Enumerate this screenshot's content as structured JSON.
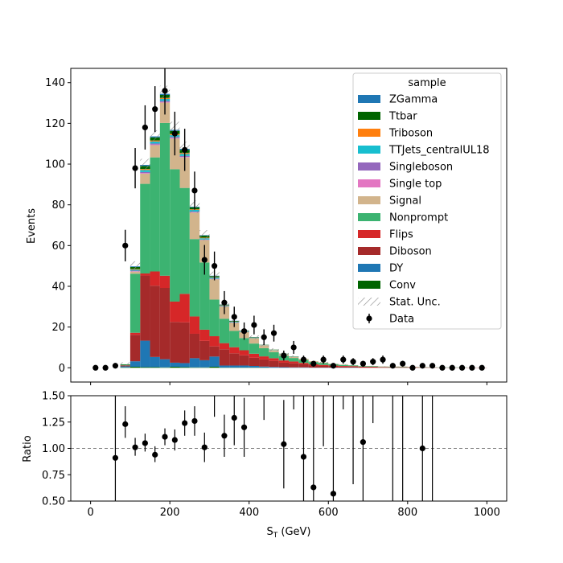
{
  "chart_data": [
    {
      "type": "bar",
      "subtype": "stacked-histogram",
      "xlabel": "S_T (GeV)",
      "ylabel": "Events",
      "xlim": [
        -50,
        1050
      ],
      "ylim": [
        -7,
        147
      ],
      "y_ticks": [
        0,
        20,
        40,
        60,
        80,
        100,
        120,
        140
      ],
      "x_ticks": [
        0,
        200,
        400,
        600,
        800,
        1000
      ],
      "legend": {
        "title": "sample",
        "placement": "top-right",
        "entries": [
          "ZGamma",
          "Ttbar",
          "Triboson",
          "TTJets_centralUL18",
          "Singleboson",
          "Single top",
          "Signal",
          "Nonprompt",
          "Flips",
          "Diboson",
          "DY",
          "Conv",
          "Stat. Unc.",
          "Data"
        ]
      },
      "bin_edges": [
        0,
        25,
        50,
        75,
        100,
        125,
        150,
        175,
        200,
        225,
        250,
        275,
        300,
        325,
        350,
        375,
        400,
        425,
        450,
        475,
        500,
        525,
        550,
        575,
        600,
        625,
        650,
        675,
        700,
        725,
        750,
        775,
        800,
        825,
        850,
        875,
        900,
        925,
        950,
        975,
        1000
      ],
      "series": [
        {
          "name": "Conv",
          "color": "#006400",
          "values": [
            0,
            0,
            0,
            0.2,
            0.5,
            0.3,
            0.3,
            0.2,
            0.5,
            0.3,
            0.2,
            0.2,
            0.5,
            0.1,
            0.1,
            0.1,
            0.1,
            0.1,
            0,
            0,
            0,
            0,
            0,
            0,
            0,
            0,
            0,
            0,
            0,
            0,
            0,
            0,
            0,
            0,
            0,
            0,
            0,
            0,
            0,
            0
          ]
        },
        {
          "name": "DY",
          "color": "#1f77b4",
          "values": [
            0,
            0,
            0,
            0.5,
            2.7,
            13,
            5,
            4,
            2,
            2,
            4.5,
            3.5,
            5,
            1,
            1,
            1,
            0.8,
            0.5,
            0.4,
            0.3,
            0.2,
            0.2,
            0.1,
            0.1,
            0.1,
            0.1,
            0.1,
            0,
            0,
            0,
            0,
            0,
            0,
            0,
            0,
            0,
            0,
            0,
            0,
            0
          ]
        },
        {
          "name": "Diboson",
          "color": "#a52a2a",
          "values": [
            0,
            0,
            0,
            0.5,
            13,
            32,
            35,
            35,
            20,
            20,
            12,
            9.5,
            5,
            8,
            6,
            5,
            4,
            3.5,
            3,
            2.2,
            2,
            1.5,
            1,
            0.8,
            0.6,
            0.5,
            0.4,
            0.3,
            0.3,
            0.2,
            0.2,
            0.2,
            0.2,
            0.1,
            0.1,
            0.1,
            0.1,
            0.1,
            0.1,
            0.1
          ]
        },
        {
          "name": "Flips",
          "color": "#d62728",
          "values": [
            0,
            0,
            0,
            0,
            1,
            1,
            7,
            6,
            10,
            14,
            8.5,
            5.5,
            5,
            3,
            3,
            2.5,
            2,
            1.5,
            1.3,
            1.1,
            0.9,
            0.7,
            0.6,
            0.5,
            0.4,
            0.3,
            0.3,
            0.2,
            0.2,
            0.2,
            0.1,
            0.1,
            0.1,
            0.1,
            0.1,
            0,
            0,
            0,
            0,
            0
          ]
        },
        {
          "name": "Nonprompt",
          "color": "#3cb371",
          "values": [
            0,
            0,
            0,
            0.3,
            29,
            44,
            56,
            75,
            65,
            52,
            38,
            33,
            18,
            12,
            8,
            6,
            5,
            4,
            3,
            2.3,
            1.7,
            1.5,
            1.1,
            0.9,
            0.7,
            0.5,
            0.4,
            0.3,
            0.3,
            0.2,
            0.2,
            0.2,
            0.1,
            0.1,
            0.1,
            0.1,
            0.1,
            0.1,
            0,
            0
          ]
        },
        {
          "name": "Signal",
          "color": "#d2b48c",
          "values": [
            0,
            0,
            0,
            0,
            1,
            5,
            6,
            10,
            15,
            15,
            13,
            11,
            10,
            6,
            4,
            3,
            2.5,
            1.5,
            1,
            0.8,
            0.6,
            0.5,
            0.4,
            0.3,
            0.2,
            0.2,
            0.1,
            0.1,
            0.1,
            0.1,
            0.1,
            0.1,
            0.1,
            0.1,
            0,
            0,
            0,
            0,
            0,
            0
          ]
        },
        {
          "name": "Single top",
          "color": "#e377c2",
          "values": [
            0,
            0,
            0,
            0,
            0.2,
            0.3,
            0.3,
            0.3,
            0.3,
            0.2,
            0.2,
            0.1,
            0.1,
            0.1,
            0.1,
            0,
            0,
            0,
            0,
            0,
            0,
            0,
            0,
            0,
            0,
            0,
            0,
            0,
            0,
            0,
            0,
            0,
            0,
            0,
            0,
            0,
            0,
            0,
            0,
            0
          ]
        },
        {
          "name": "Singleboson",
          "color": "#9467bd",
          "values": [
            0,
            0,
            0,
            0,
            0.3,
            0.5,
            0.5,
            0.5,
            0.5,
            0.5,
            0.3,
            0.2,
            0.2,
            0.1,
            0.1,
            0.1,
            0,
            0,
            0,
            0,
            0,
            0,
            0,
            0,
            0,
            0,
            0,
            0,
            0,
            0,
            0,
            0,
            0,
            0,
            0,
            0,
            0,
            0,
            0,
            0
          ]
        },
        {
          "name": "TTJets_centralUL18",
          "color": "#17becf",
          "values": [
            0,
            0,
            0,
            0,
            0.5,
            1,
            1,
            1,
            1,
            1,
            0.8,
            0.6,
            0.5,
            0.3,
            0.3,
            0.2,
            0.2,
            0.1,
            0.1,
            0.1,
            0.1,
            0,
            0,
            0,
            0,
            0,
            0,
            0,
            0,
            0,
            0,
            0,
            0,
            0,
            0,
            0,
            0,
            0,
            0,
            0
          ]
        },
        {
          "name": "Triboson",
          "color": "#ff7f0e",
          "values": [
            0,
            0,
            0,
            0,
            0.3,
            0.5,
            0.5,
            0.5,
            0.5,
            0.5,
            0.3,
            0.3,
            0.2,
            0.1,
            0.1,
            0.1,
            0.1,
            0,
            0,
            0,
            0,
            0,
            0,
            0,
            0,
            0,
            0,
            0,
            0,
            0,
            0,
            0,
            0,
            0,
            0,
            0,
            0,
            0,
            0,
            0
          ]
        },
        {
          "name": "Ttbar",
          "color": "#006400",
          "values": [
            0,
            0,
            0,
            0.2,
            1,
            1.5,
            1.5,
            1.5,
            1.5,
            1.5,
            1,
            1,
            0.5,
            0.3,
            0.3,
            0.2,
            0.2,
            0.1,
            0.1,
            0.1,
            0.1,
            0,
            0,
            0,
            0,
            0,
            0,
            0,
            0,
            0,
            0,
            0,
            0,
            0,
            0,
            0,
            0,
            0,
            0,
            0
          ]
        },
        {
          "name": "ZGamma",
          "color": "#1f77b4",
          "values": [
            0,
            0,
            0,
            0,
            0.3,
            0.5,
            0.5,
            0.5,
            0.5,
            0.5,
            0.3,
            0.2,
            0.2,
            0.1,
            0.1,
            0.1,
            0.1,
            0,
            0,
            0,
            0,
            0,
            0,
            0,
            0,
            0,
            0,
            0,
            0,
            0,
            0,
            0,
            0,
            0,
            0,
            0,
            0,
            0,
            0,
            0
          ]
        }
      ],
      "stat_unc": [
        0,
        0,
        0,
        1,
        2.5,
        3,
        3,
        4,
        4,
        3.5,
        3,
        2.5,
        2,
        1.5,
        1.2,
        1,
        0.9,
        0.8,
        0.7,
        0.6,
        0.5,
        0.4,
        0.3,
        0.3,
        0.2,
        0.2,
        0.2,
        0.2,
        0.1,
        0.1,
        0.1,
        0.1,
        0.1,
        0.1,
        0.1,
        0,
        0,
        0,
        0,
        0
      ],
      "data": {
        "x": [
          12.5,
          37.5,
          62.5,
          87.5,
          112.5,
          137.5,
          162.5,
          187.5,
          212.5,
          237.5,
          262.5,
          287.5,
          312.5,
          337.5,
          362.5,
          387.5,
          412.5,
          437.5,
          462.5,
          487.5,
          512.5,
          537.5,
          562.5,
          587.5,
          612.5,
          637.5,
          662.5,
          687.5,
          712.5,
          737.5,
          762.5,
          787.5,
          812.5,
          837.5,
          862.5,
          887.5,
          912.5,
          937.5,
          962.5,
          987.5
        ],
        "y": [
          0,
          0,
          1,
          60,
          98,
          118,
          127,
          136,
          115,
          107,
          87,
          53,
          50,
          32,
          25,
          18,
          21,
          15,
          17,
          6,
          10,
          4,
          2,
          4,
          1,
          4,
          3,
          2,
          3,
          4,
          1,
          2,
          0,
          1,
          1,
          0,
          0,
          0,
          0,
          0
        ]
      }
    },
    {
      "type": "scatter",
      "subtype": "ratio",
      "xlabel": "S_T (GeV)",
      "ylabel": "Ratio",
      "xlim": [
        -50,
        1050
      ],
      "ylim": [
        0.5,
        1.5
      ],
      "y_ticks": [
        0.5,
        0.75,
        1.0,
        1.25,
        1.5
      ],
      "y_tick_labels": [
        "0.50",
        "0.75",
        "1.00",
        "1.25",
        "1.50"
      ],
      "x_ticks": [
        0,
        200,
        400,
        600,
        800,
        1000
      ],
      "reference_line": 1.0,
      "points": [
        {
          "x": 62.5,
          "y": 0.91,
          "lo": 0.5,
          "hi": 1.5
        },
        {
          "x": 87.5,
          "y": 1.23,
          "lo": 1.1,
          "hi": 1.4
        },
        {
          "x": 112.5,
          "y": 1.01,
          "lo": 0.93,
          "hi": 1.1
        },
        {
          "x": 137.5,
          "y": 1.05,
          "lo": 0.97,
          "hi": 1.14
        },
        {
          "x": 162.5,
          "y": 0.94,
          "lo": 0.87,
          "hi": 1.02
        },
        {
          "x": 187.5,
          "y": 1.11,
          "lo": 1.03,
          "hi": 1.19
        },
        {
          "x": 212.5,
          "y": 1.08,
          "lo": 0.98,
          "hi": 1.18
        },
        {
          "x": 237.5,
          "y": 1.24,
          "lo": 1.12,
          "hi": 1.36
        },
        {
          "x": 262.5,
          "y": 1.26,
          "lo": 1.12,
          "hi": 1.4
        },
        {
          "x": 287.5,
          "y": 1.01,
          "lo": 0.87,
          "hi": 1.15
        },
        {
          "x": 312.5,
          "y": null,
          "lo": 1.3,
          "hi": 1.5
        },
        {
          "x": 337.5,
          "y": 1.12,
          "lo": 0.92,
          "hi": 1.32
        },
        {
          "x": 362.5,
          "y": 1.29,
          "lo": 1.03,
          "hi": 1.5
        },
        {
          "x": 387.5,
          "y": 1.2,
          "lo": 0.92,
          "hi": 1.48
        },
        {
          "x": 437.5,
          "y": null,
          "lo": 1.27,
          "hi": 1.5
        },
        {
          "x": 487.5,
          "y": 1.04,
          "lo": 0.62,
          "hi": 1.46
        },
        {
          "x": 512.5,
          "y": null,
          "lo": 1.37,
          "hi": 1.5
        },
        {
          "x": 537.5,
          "y": 0.92,
          "lo": 0.5,
          "hi": 1.5
        },
        {
          "x": 562.5,
          "y": 0.63,
          "lo": 0.5,
          "hi": 1.5
        },
        {
          "x": 587.5,
          "y": null,
          "lo": 1.02,
          "hi": 1.5
        },
        {
          "x": 612.5,
          "y": 0.57,
          "lo": 0.5,
          "hi": 1.5
        },
        {
          "x": 637.5,
          "y": null,
          "lo": 1.37,
          "hi": 1.5
        },
        {
          "x": 662.5,
          "y": null,
          "lo": 0.66,
          "hi": 1.5
        },
        {
          "x": 687.5,
          "y": 1.06,
          "lo": 0.5,
          "hi": 1.5
        },
        {
          "x": 712.5,
          "y": null,
          "lo": 1.24,
          "hi": 1.5
        },
        {
          "x": 762.5,
          "y": null,
          "lo": 0.5,
          "hi": 1.5
        },
        {
          "x": 787.5,
          "y": null,
          "lo": 0.5,
          "hi": 1.5
        },
        {
          "x": 837.5,
          "y": 1.0,
          "lo": 0.5,
          "hi": 1.5
        },
        {
          "x": 862.5,
          "y": null,
          "lo": 0.5,
          "hi": 1.5
        }
      ]
    }
  ]
}
